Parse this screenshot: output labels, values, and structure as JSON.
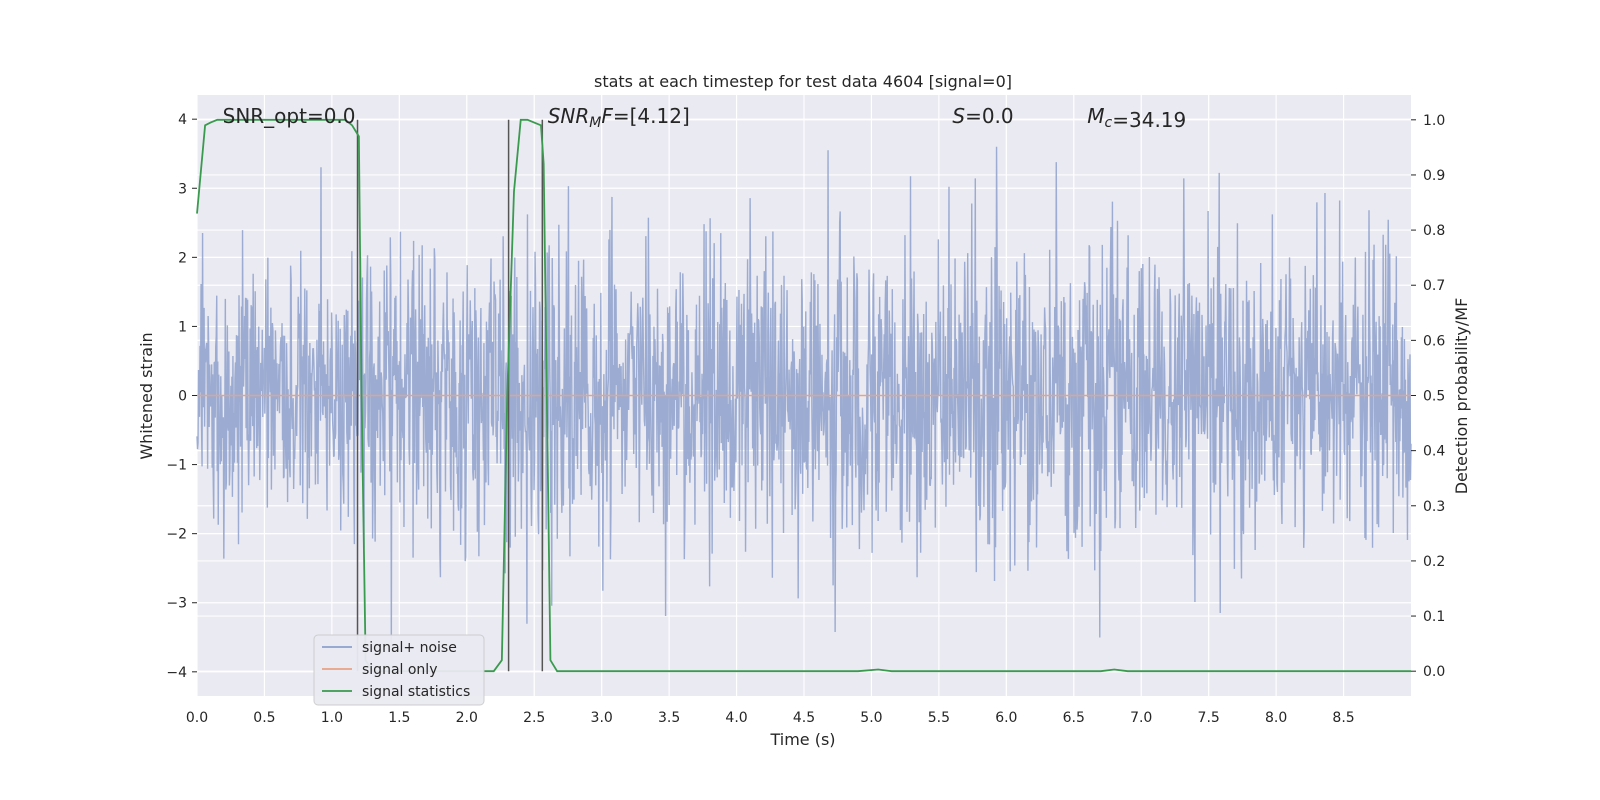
{
  "chart_data": {
    "type": "line",
    "title": "stats at each timestep for test data 4604 [signal=0]",
    "xlabel": "Time (s)",
    "ylabel_left": "Whitened strain",
    "ylabel_right": "Detection probability/MF",
    "xlim": [
      0.0,
      9.0
    ],
    "ylim_left": [
      -4.35,
      4.35
    ],
    "ylim_right": [
      -0.045,
      1.045
    ],
    "x_ticks": [
      "0.0",
      "0.5",
      "1.0",
      "1.5",
      "2.0",
      "2.5",
      "3.0",
      "3.5",
      "4.0",
      "4.5",
      "5.0",
      "5.5",
      "6.0",
      "6.5",
      "7.0",
      "7.5",
      "8.0",
      "8.5"
    ],
    "y_ticks_left": [
      "4",
      "3",
      "2",
      "1",
      "0",
      "−1",
      "−2",
      "−3",
      "−4"
    ],
    "y_ticks_right": [
      "1.0",
      "0.9",
      "0.8",
      "0.7",
      "0.6",
      "0.5",
      "0.4",
      "0.3",
      "0.2",
      "0.1",
      "0.0"
    ],
    "grid": true,
    "annotations": [
      {
        "name": "snr-opt",
        "text": "SNR_opt=0.0",
        "x": 0.19,
        "y": 4.0,
        "italic_prefix": "",
        "subscript": "",
        "suffix": ""
      },
      {
        "name": "snr-mf",
        "text": "=[4.12]",
        "x": 2.6,
        "y": 4.0,
        "italic_prefix": "SNR",
        "subscript": "M",
        "suffix": "F"
      },
      {
        "name": "s-value",
        "text": "=0.0",
        "x": 5.6,
        "y": 4.0,
        "italic_prefix": "S",
        "subscript": "",
        "suffix": ""
      },
      {
        "name": "mc-value",
        "text": "=34.19",
        "x": 6.6,
        "y": 4.0,
        "italic_prefix": "M",
        "subscript": "c",
        "suffix": ""
      }
    ],
    "legend": {
      "placement": "lower-left",
      "entries": [
        {
          "label": "signal+ noise",
          "color": "#8da0cb"
        },
        {
          "label": "signal only",
          "color": "#e8a284"
        },
        {
          "label": "signal statistics",
          "color": "#3a9a4e"
        }
      ]
    },
    "series": [
      {
        "name": "signal+ noise",
        "axis": "left",
        "color": "#8da0cb",
        "description_values": "Gaussian-like noise, amplitude mostly within ±2.5, peaks near ±3.6",
        "envelope_max": 3.6,
        "envelope_min": -4.0
      },
      {
        "name": "signal only",
        "axis": "left",
        "color": "#e8a284",
        "values_const": 0.0
      },
      {
        "name": "signal statistics",
        "axis": "right",
        "color": "#3a9a4e",
        "x": [
          0.0,
          0.06,
          0.1,
          0.15,
          0.3,
          0.6,
          0.9,
          1.0,
          1.1,
          1.15,
          1.2,
          1.22,
          1.25,
          1.3,
          1.5,
          2.0,
          2.2,
          2.26,
          2.3,
          2.35,
          2.4,
          2.45,
          2.55,
          2.57,
          2.62,
          2.67,
          3.0,
          4.0,
          4.9,
          5.05,
          5.15,
          6.0,
          6.7,
          6.8,
          6.9,
          8.0,
          9.0
        ],
        "y": [
          0.83,
          0.99,
          0.995,
          1.0,
          1.0,
          1.0,
          1.0,
          1.0,
          1.0,
          0.99,
          0.97,
          0.5,
          0.02,
          0.0,
          0.0,
          0.0,
          0.0,
          0.02,
          0.5,
          0.87,
          1.0,
          1.0,
          0.99,
          0.92,
          0.02,
          0.0,
          0.0,
          0.0,
          0.0,
          0.003,
          0.0,
          0.0,
          0.0,
          0.003,
          0.0,
          0.0,
          0.0
        ]
      }
    ],
    "vlines": [
      {
        "name": "vline-1",
        "x": 1.19,
        "color": "#555555"
      },
      {
        "name": "vline-2",
        "x": 2.31,
        "color": "#555555"
      },
      {
        "name": "vline-3",
        "x": 2.56,
        "color": "#555555"
      }
    ]
  }
}
